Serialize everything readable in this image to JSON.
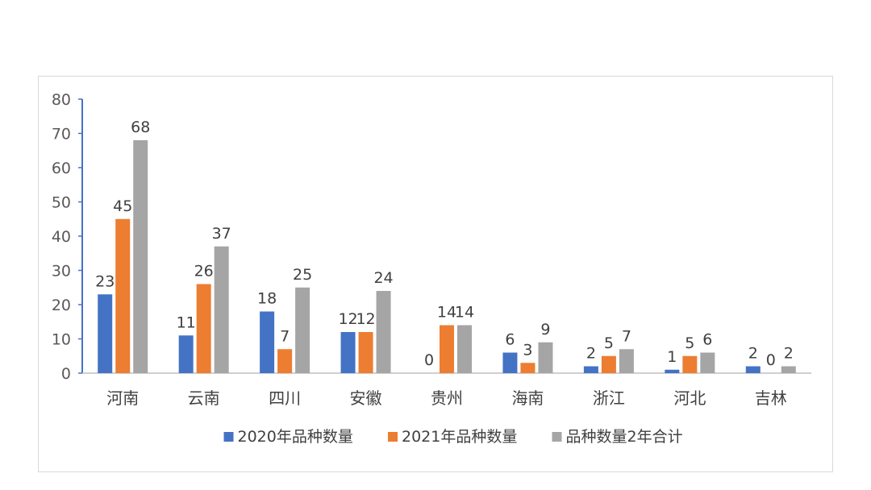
{
  "chart_data": {
    "type": "bar",
    "title": "",
    "xlabel": "",
    "ylabel": "",
    "ylim": [
      0,
      80
    ],
    "yticks": [
      0,
      10,
      20,
      30,
      40,
      50,
      60,
      70,
      80
    ],
    "grid": false,
    "legend_position": "bottom",
    "categories": [
      "河南",
      "云南",
      "四川",
      "安徽",
      "贵州",
      "海南",
      "浙江",
      "河北",
      "吉林"
    ],
    "series": [
      {
        "name": "2020年品种数量",
        "color": "#4472c4",
        "values": [
          23,
          11,
          18,
          12,
          0,
          6,
          2,
          1,
          2
        ]
      },
      {
        "name": "2021年品种数量",
        "color": "#ed7d31",
        "values": [
          45,
          26,
          7,
          12,
          14,
          3,
          5,
          5,
          0
        ]
      },
      {
        "name": "品种数量2年合计",
        "color": "#a5a5a5",
        "values": [
          68,
          37,
          25,
          24,
          14,
          9,
          7,
          6,
          2
        ]
      }
    ]
  }
}
